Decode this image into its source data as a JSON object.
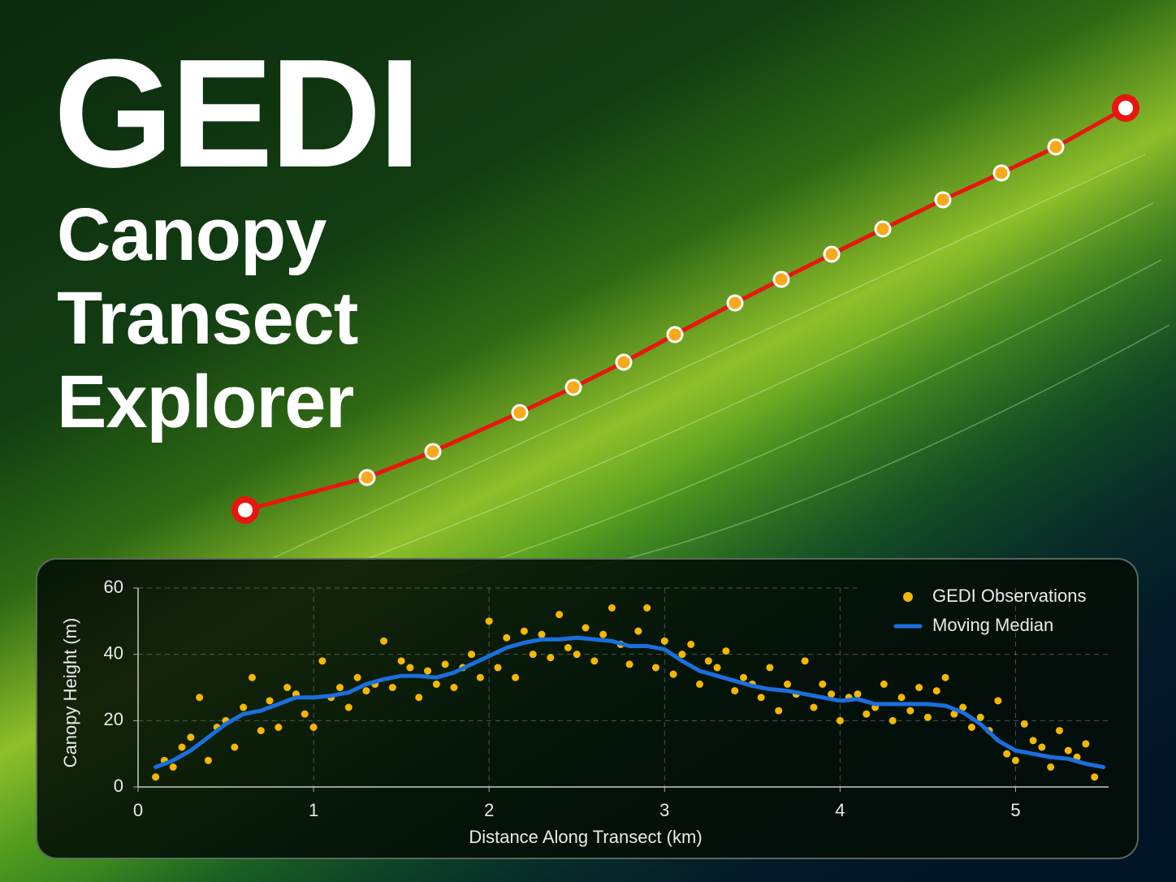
{
  "chart_data": {
    "type": "scatter",
    "title": "GEDI",
    "subtitle": "Canopy Transect Explorer",
    "x_label": "Distance Along Transect (km)",
    "y_label": "Canopy Height (m)",
    "xlim": [
      0,
      5.53
    ],
    "ylim": [
      0,
      60
    ],
    "xticks": [
      0,
      1,
      2,
      3,
      4,
      5
    ],
    "yticks": [
      0,
      20,
      40,
      60
    ],
    "grid": true,
    "legend": "upper right",
    "series": [
      {
        "name": "GEDI Observations",
        "type": "scatter",
        "color": "#f5b800",
        "x": [
          0.1,
          0.15,
          0.2,
          0.25,
          0.3,
          0.35,
          0.4,
          0.45,
          0.5,
          0.55,
          0.6,
          0.65,
          0.7,
          0.75,
          0.8,
          0.85,
          0.9,
          0.95,
          1.0,
          1.05,
          1.1,
          1.15,
          1.2,
          1.25,
          1.3,
          1.35,
          1.4,
          1.45,
          1.5,
          1.55,
          1.6,
          1.65,
          1.7,
          1.75,
          1.8,
          1.85,
          1.9,
          1.95,
          2.0,
          2.05,
          2.1,
          2.15,
          2.2,
          2.25,
          2.3,
          2.35,
          2.4,
          2.45,
          2.5,
          2.55,
          2.6,
          2.65,
          2.7,
          2.75,
          2.8,
          2.85,
          2.9,
          2.95,
          3.0,
          3.05,
          3.1,
          3.15,
          3.2,
          3.25,
          3.3,
          3.35,
          3.4,
          3.45,
          3.5,
          3.55,
          3.6,
          3.65,
          3.7,
          3.75,
          3.8,
          3.85,
          3.9,
          3.95,
          4.0,
          4.05,
          4.1,
          4.15,
          4.2,
          4.25,
          4.3,
          4.35,
          4.4,
          4.45,
          4.5,
          4.55,
          4.6,
          4.65,
          4.7,
          4.75,
          4.8,
          4.85,
          4.9,
          4.95,
          5.0,
          5.05,
          5.1,
          5.15,
          5.2,
          5.25,
          5.3,
          5.35,
          5.4,
          5.45
        ],
        "values": [
          3,
          8,
          6,
          12,
          15,
          27,
          8,
          18,
          20,
          12,
          24,
          33,
          17,
          26,
          18,
          30,
          28,
          22,
          18,
          38,
          27,
          30,
          24,
          33,
          29,
          31,
          44,
          30,
          38,
          36,
          27,
          35,
          31,
          37,
          30,
          36,
          40,
          33,
          50,
          36,
          45,
          33,
          47,
          40,
          46,
          39,
          52,
          42,
          40,
          48,
          38,
          46,
          54,
          43,
          37,
          47,
          54,
          36,
          44,
          34,
          40,
          43,
          31,
          38,
          36,
          41,
          29,
          33,
          31,
          27,
          36,
          23,
          31,
          28,
          38,
          24,
          31,
          28,
          20,
          27,
          28,
          22,
          24,
          31,
          20,
          27,
          23,
          30,
          21,
          29,
          33,
          22,
          24,
          18,
          21,
          17,
          26,
          10,
          8,
          19,
          14,
          12,
          6,
          17,
          11,
          9,
          13,
          3
        ]
      },
      {
        "name": "Moving Median",
        "type": "line",
        "color": "#1a6fe0",
        "x": [
          0.1,
          0.2,
          0.3,
          0.4,
          0.5,
          0.6,
          0.7,
          0.8,
          0.9,
          1.0,
          1.1,
          1.2,
          1.3,
          1.4,
          1.5,
          1.6,
          1.7,
          1.8,
          1.9,
          2.0,
          2.1,
          2.2,
          2.3,
          2.4,
          2.5,
          2.6,
          2.7,
          2.8,
          2.9,
          3.0,
          3.1,
          3.2,
          3.3,
          3.4,
          3.5,
          3.6,
          3.7,
          3.8,
          3.9,
          4.0,
          4.1,
          4.2,
          4.3,
          4.4,
          4.5,
          4.6,
          4.7,
          4.8,
          4.9,
          5.0,
          5.1,
          5.2,
          5.3,
          5.4,
          5.5
        ],
        "values": [
          6,
          8,
          11,
          15,
          19,
          22,
          23,
          25,
          27,
          27,
          27.5,
          28.5,
          31,
          32.5,
          33.5,
          33.5,
          33,
          34.5,
          37,
          39.5,
          42,
          43.5,
          44.5,
          44.5,
          45,
          44.5,
          44,
          42.5,
          42.5,
          41.5,
          38,
          35,
          33.5,
          32,
          30.5,
          29.5,
          29,
          28,
          27,
          26,
          26.5,
          25,
          25,
          25,
          25,
          24.5,
          22.5,
          19,
          14,
          11,
          10,
          9,
          8.5,
          7,
          6
        ]
      }
    ]
  }
}
